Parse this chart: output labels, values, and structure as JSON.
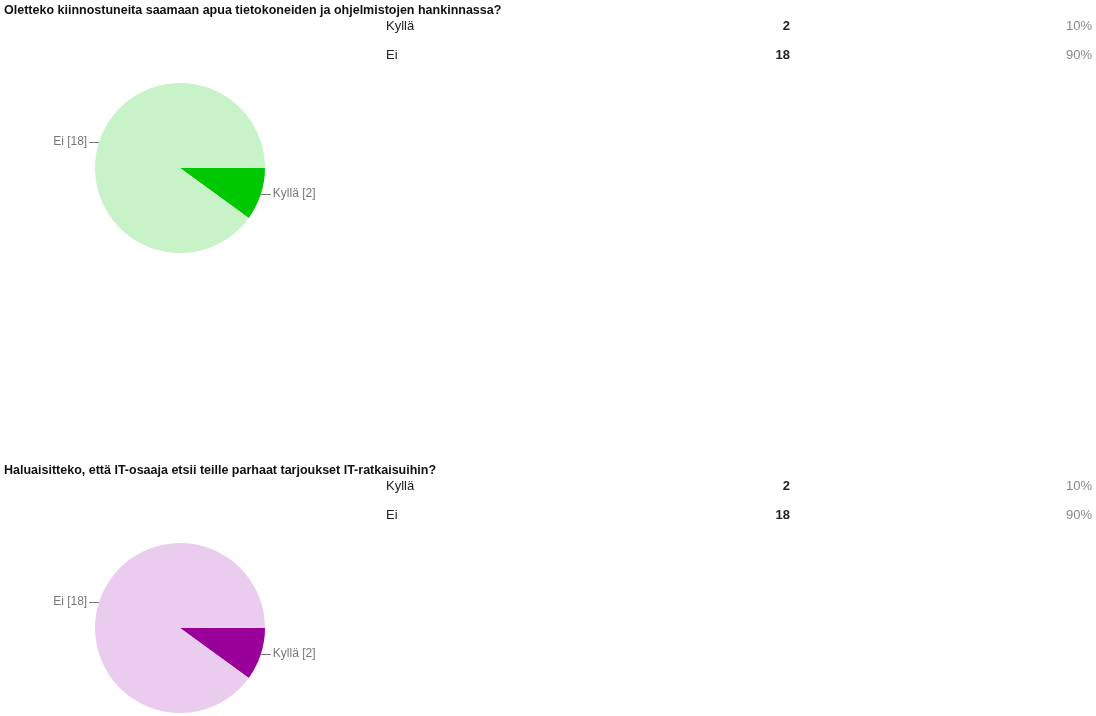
{
  "chart_data": [
    {
      "type": "pie",
      "title": "Oletteko kiinnostuneita saamaan apua tietokoneiden ja ohjelmistojen hankinnassa?",
      "categories": [
        "Kyllä",
        "Ei"
      ],
      "values": [
        2,
        18
      ],
      "colors": [
        "#00c800",
        "#c8f2c8"
      ],
      "value_labels": [
        "[2]",
        "[18]"
      ],
      "annotations": [
        "Kyllä",
        "2",
        "10%",
        "Ei",
        "18",
        "90%"
      ]
    },
    {
      "type": "pie",
      "title": "Haluaisitteko, että IT-osaaja etsii teille parhaat tarjoukset IT-ratkaisuihin?",
      "categories": [
        "Kyllä",
        "Ei"
      ],
      "values": [
        2,
        18
      ],
      "colors": [
        "#990099",
        "#eacdee"
      ],
      "value_labels": [
        "[2]",
        "[18]"
      ],
      "annotations": [
        "Kyllä",
        "2",
        "10%",
        "Ei",
        "18",
        "90%"
      ]
    }
  ]
}
